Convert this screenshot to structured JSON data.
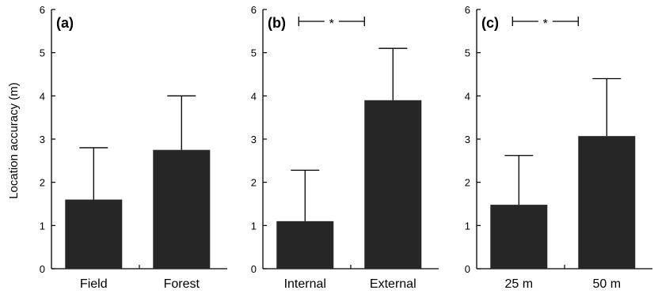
{
  "chart_data": [
    {
      "type": "bar",
      "panel_label": "(a)",
      "categories": [
        "Field",
        "Forest"
      ],
      "values": [
        1.6,
        2.75
      ],
      "error_upper": [
        2.8,
        4.0
      ],
      "ylim": [
        0,
        6
      ],
      "yticks": [
        "0",
        "1",
        "2",
        "3",
        "4",
        "5",
        "6"
      ],
      "ylabel": "Location accuracy (m)",
      "significance": null,
      "bar_color": "#262626"
    },
    {
      "type": "bar",
      "panel_label": "(b)",
      "categories": [
        "Internal",
        "External"
      ],
      "values": [
        1.1,
        3.9
      ],
      "error_upper": [
        2.28,
        5.1
      ],
      "ylim": [
        0,
        6
      ],
      "yticks": [
        "0",
        "1",
        "2",
        "3",
        "4",
        "5",
        "6"
      ],
      "ylabel": "",
      "significance": "*",
      "bar_color": "#262626"
    },
    {
      "type": "bar",
      "panel_label": "(c)",
      "categories": [
        "25 m",
        "50 m"
      ],
      "values": [
        1.48,
        3.07
      ],
      "error_upper": [
        2.62,
        4.4
      ],
      "ylim": [
        0,
        6
      ],
      "yticks": [
        "0",
        "1",
        "2",
        "3",
        "4",
        "5",
        "6"
      ],
      "ylabel": "",
      "significance": "*",
      "bar_color": "#262626"
    }
  ]
}
